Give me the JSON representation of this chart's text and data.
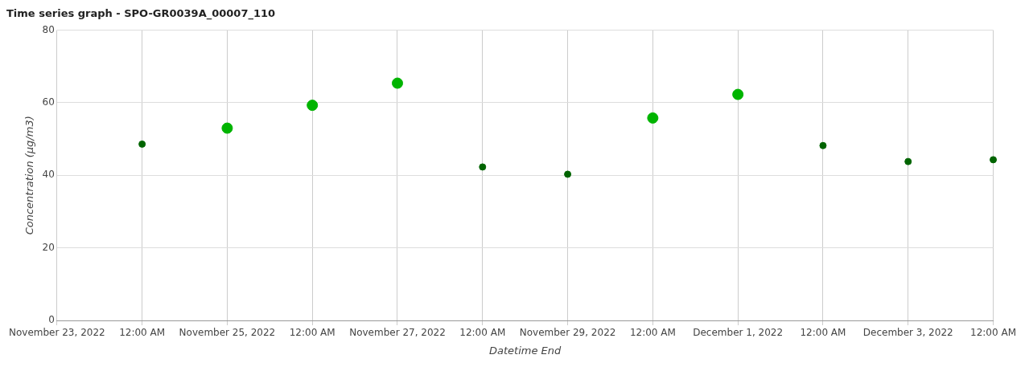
{
  "chart_data": {
    "type": "scatter",
    "title": "Time series graph - SPO-GR0039A_00007_110",
    "xlabel": "Datetime End",
    "ylabel": "Concentration (µg/m3)",
    "series": [
      {
        "color": "#006400",
        "x": [
          "2022-11-24",
          "2022-11-28",
          "2022-11-29",
          "2022-12-02",
          "2022-12-03",
          "2022-12-04"
        ],
        "values": [
          48.6,
          42.3,
          40.3,
          48.2,
          43.8,
          44.3
        ]
      },
      {
        "color": "#00b400",
        "x": [
          "2022-11-25",
          "2022-11-26",
          "2022-11-27",
          "2022-11-30",
          "2022-12-01"
        ],
        "values": [
          53.0,
          59.3,
          65.4,
          55.8,
          62.3
        ]
      }
    ],
    "xlim": [
      "2022-11-23",
      "2022-12-04"
    ],
    "xticks": [
      {
        "value": "2022-11-23",
        "label": "November 23, 2022"
      },
      {
        "value": "2022-11-24",
        "label": "12:00 AM"
      },
      {
        "value": "2022-11-25",
        "label": "November 25, 2022"
      },
      {
        "value": "2022-11-26",
        "label": "12:00 AM"
      },
      {
        "value": "2022-11-27",
        "label": "November 27, 2022"
      },
      {
        "value": "2022-11-28",
        "label": "12:00 AM"
      },
      {
        "value": "2022-11-29",
        "label": "November 29, 2022"
      },
      {
        "value": "2022-11-30",
        "label": "12:00 AM"
      },
      {
        "value": "2022-12-01",
        "label": "December 1, 2022"
      },
      {
        "value": "2022-12-02",
        "label": "12:00 AM"
      },
      {
        "value": "2022-12-03",
        "label": "December 3, 2022"
      },
      {
        "value": "2022-12-04",
        "label": "12:00 AM"
      }
    ],
    "ylim": [
      0,
      80
    ],
    "yticks": [
      0,
      20,
      40,
      60,
      80
    ],
    "grid": true,
    "marker": "circle"
  }
}
